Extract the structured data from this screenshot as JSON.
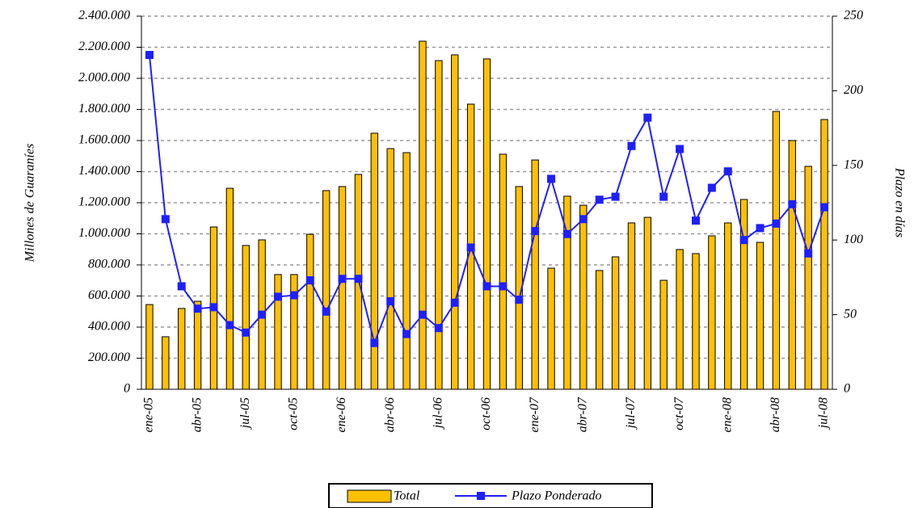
{
  "chart_data": {
    "type": "bar",
    "y_label": "Millones de Guaraníes",
    "y2_label": "Plazo en días",
    "categories": [
      "ene-05",
      null,
      null,
      "abr-05",
      null,
      null,
      "jul-05",
      null,
      null,
      "oct-05",
      null,
      null,
      "ene-06",
      null,
      null,
      "abr-06",
      null,
      null,
      "jul-06",
      null,
      null,
      "oct-06",
      null,
      null,
      "ene-07",
      null,
      null,
      "abr-07",
      null,
      null,
      "jul-07",
      null,
      null,
      "oct-07",
      null,
      null,
      "ene-08",
      null,
      null,
      "abr-08",
      null,
      null,
      "jul-08"
    ],
    "series": [
      {
        "name": "Total",
        "type": "bar",
        "color": "#ffc000",
        "values": [
          545000,
          338000,
          520000,
          566000,
          1044000,
          1293000,
          925000,
          961000,
          738000,
          738000,
          997000,
          1278000,
          1304000,
          1382000,
          1647000,
          1548000,
          1522000,
          2239000,
          2114000,
          2151000,
          1834000,
          2125000,
          1512000,
          1304000,
          1475000,
          779000,
          1242000,
          1184000,
          764000,
          852000,
          1070000,
          1106000,
          701000,
          899000,
          873000,
          987000,
          1070000,
          1221000,
          945000,
          1787000,
          1600000,
          1434000,
          1735000
        ]
      },
      {
        "name": "Plazo Ponderado",
        "type": "line",
        "axis": "y2",
        "color": "#1f1fff",
        "values": [
          224,
          114,
          69,
          54,
          55,
          43,
          38,
          50,
          62,
          63,
          73,
          52,
          74,
          74,
          31,
          59,
          37,
          50,
          41,
          58,
          95,
          69,
          69,
          60,
          106,
          141,
          104,
          114,
          127,
          129,
          163,
          182,
          129,
          161,
          113,
          135,
          146,
          100,
          108,
          111,
          124,
          91,
          122
        ]
      }
    ],
    "ylim": [
      0,
      2400000
    ],
    "yticks": [
      0,
      {
        "value": 200000,
        "label": "200.000"
      },
      {
        "value": 400000,
        "label": "400.000"
      },
      {
        "value": 600000,
        "label": "600.000"
      },
      {
        "value": 800000,
        "label": "800.000"
      },
      {
        "value": 1000000,
        "label": "1.000.000"
      },
      {
        "value": 1200000,
        "label": "1.200.000"
      },
      {
        "value": 1400000,
        "label": "1.400.000"
      },
      {
        "value": 1600000,
        "label": "1.600.000"
      },
      {
        "value": 1800000,
        "label": "1.800.000"
      },
      {
        "value": 2000000,
        "label": "2.000.000"
      },
      {
        "value": 2200000,
        "label": "2.200.000"
      },
      {
        "value": 2400000,
        "label": "2.400.000"
      }
    ],
    "y2lim": [
      0,
      250
    ],
    "y2ticks": [
      0,
      50,
      100,
      150,
      200,
      250
    ],
    "grid": true,
    "legend": "bottom"
  }
}
